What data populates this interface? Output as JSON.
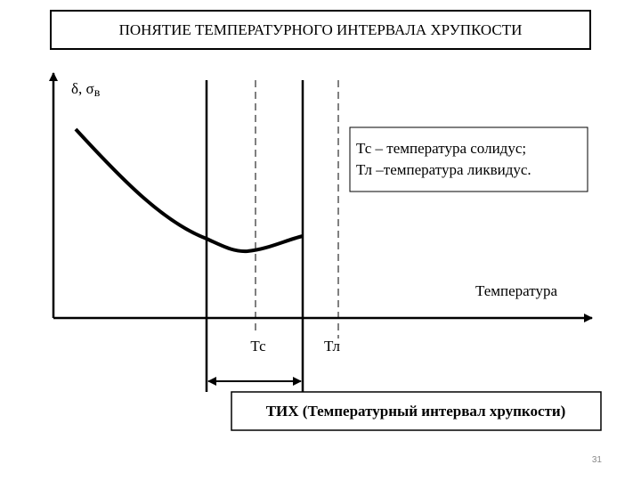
{
  "header": {
    "title": "ПОНЯТИЕ ТЕМПЕРАТУРНОГО ИНТЕРВАЛА ХРУПКОСТИ"
  },
  "diagram": {
    "y_label": {
      "main": "δ, σ",
      "subscript": "в"
    },
    "x_label": "Температура",
    "legend": [
      "Тс – температура солидус;",
      "Тл –температура ликвидус."
    ],
    "ticks": [
      "Тс",
      "Тл"
    ],
    "interval_label": "ТИХ (Температурный интервал хрупкости)"
  },
  "footer": {
    "page_number": "31"
  }
}
